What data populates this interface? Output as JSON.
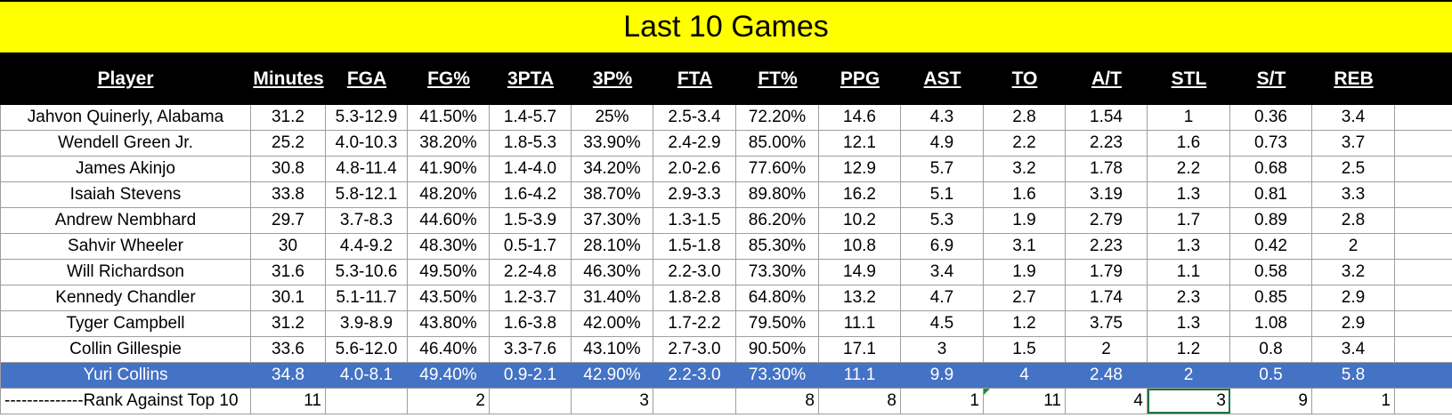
{
  "title": "Last 10 Games",
  "columns": [
    "Player",
    "Minutes",
    "FGA",
    "FG%",
    "3PTA",
    "3P%",
    "FTA",
    "FT%",
    "PPG",
    "AST",
    "TO",
    "A/T",
    "STL",
    "S/T",
    "REB"
  ],
  "rows": [
    [
      "Jahvon Quinerly, Alabama",
      "31.2",
      "5.3-12.9",
      "41.50%",
      "1.4-5.7",
      "25%",
      "2.5-3.4",
      "72.20%",
      "14.6",
      "4.3",
      "2.8",
      "1.54",
      "1",
      "0.36",
      "3.4"
    ],
    [
      "Wendell Green Jr.",
      "25.2",
      "4.0-10.3",
      "38.20%",
      "1.8-5.3",
      "33.90%",
      "2.4-2.9",
      "85.00%",
      "12.1",
      "4.9",
      "2.2",
      "2.23",
      "1.6",
      "0.73",
      "3.7"
    ],
    [
      "James Akinjo",
      "30.8",
      "4.8-11.4",
      "41.90%",
      "1.4-4.0",
      "34.20%",
      "2.0-2.6",
      "77.60%",
      "12.9",
      "5.7",
      "3.2",
      "1.78",
      "2.2",
      "0.68",
      "2.5"
    ],
    [
      "Isaiah Stevens",
      "33.8",
      "5.8-12.1",
      "48.20%",
      "1.6-4.2",
      "38.70%",
      "2.9-3.3",
      "89.80%",
      "16.2",
      "5.1",
      "1.6",
      "3.19",
      "1.3",
      "0.81",
      "3.3"
    ],
    [
      "Andrew Nembhard",
      "29.7",
      "3.7-8.3",
      "44.60%",
      "1.5-3.9",
      "37.30%",
      "1.3-1.5",
      "86.20%",
      "10.2",
      "5.3",
      "1.9",
      "2.79",
      "1.7",
      "0.89",
      "2.8"
    ],
    [
      "Sahvir Wheeler",
      "30",
      "4.4-9.2",
      "48.30%",
      "0.5-1.7",
      "28.10%",
      "1.5-1.8",
      "85.30%",
      "10.8",
      "6.9",
      "3.1",
      "2.23",
      "1.3",
      "0.42",
      "2"
    ],
    [
      "Will Richardson",
      "31.6",
      "5.3-10.6",
      "49.50%",
      "2.2-4.8",
      "46.30%",
      "2.2-3.0",
      "73.30%",
      "14.9",
      "3.4",
      "1.9",
      "1.79",
      "1.1",
      "0.58",
      "3.2"
    ],
    [
      "Kennedy Chandler",
      "30.1",
      "5.1-11.7",
      "43.50%",
      "1.2-3.7",
      "31.40%",
      "1.8-2.8",
      "64.80%",
      "13.2",
      "4.7",
      "2.7",
      "1.74",
      "2.3",
      "0.85",
      "2.9"
    ],
    [
      "Tyger Campbell",
      "31.2",
      "3.9-8.9",
      "43.80%",
      "1.6-3.8",
      "42.00%",
      "1.7-2.2",
      "79.50%",
      "11.1",
      "4.5",
      "1.2",
      "3.75",
      "1.3",
      "1.08",
      "2.9"
    ],
    [
      "Collin Gillespie",
      "33.6",
      "5.6-12.0",
      "46.40%",
      "3.3-7.6",
      "43.10%",
      "2.7-3.0",
      "90.50%",
      "17.1",
      "3",
      "1.5",
      "2",
      "1.2",
      "0.8",
      "3.4"
    ],
    [
      "Yuri Collins",
      "34.8",
      "4.0-8.1",
      "49.40%",
      "0.9-2.1",
      "42.90%",
      "2.2-3.0",
      "73.30%",
      "11.1",
      "9.9",
      "4",
      "2.48",
      "2",
      "0.5",
      "5.8"
    ]
  ],
  "highlight_row_index": 10,
  "highlight_color": "#4472c4",
  "title_bg": "#ffff00",
  "rank_row": [
    "--------------Rank Against Top 10",
    "11",
    "",
    "2",
    "",
    "3",
    "",
    "8",
    "8",
    "1",
    "11",
    "4",
    "3",
    "9",
    "1"
  ]
}
